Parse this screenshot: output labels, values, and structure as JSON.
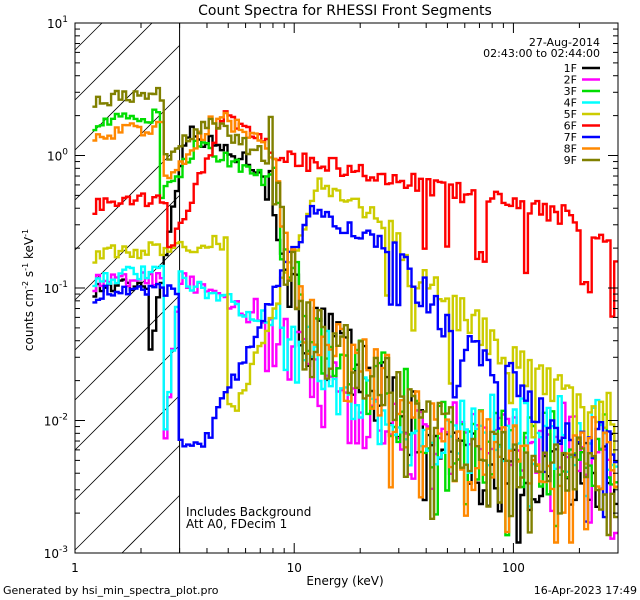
{
  "chart_data": {
    "type": "line",
    "title": "Count Spectra for RHESSI Front Segments",
    "xlabel": "Energy (keV)",
    "ylabel": {
      "main": "counts cm",
      "sup1": "-2",
      "mid": " s",
      "sup2": "-1",
      "tail": " keV",
      "sup3": "-1"
    },
    "xscale": "log",
    "yscale": "log",
    "xlim": [
      1.0,
      300.0
    ],
    "ylim": [
      0.001,
      10.0
    ],
    "x_ticks": [
      {
        "value": 1,
        "label": "1"
      },
      {
        "value": 10,
        "label": "10"
      },
      {
        "value": 100,
        "label": "100"
      }
    ],
    "y_ticks": [
      {
        "value": 10,
        "base": "10",
        "exp": "1"
      },
      {
        "value": 1,
        "base": "10",
        "exp": "0"
      },
      {
        "value": 0.1,
        "base": "10",
        "exp": "-1"
      },
      {
        "value": 0.01,
        "base": "10",
        "exp": "-2"
      },
      {
        "value": 0.001,
        "base": "10",
        "exp": "-3"
      }
    ],
    "hatched_region_kev": [
      1.0,
      3.0
    ],
    "date": "27-Aug-2014",
    "time_range": "02:43:00 to 02:44:00",
    "annotations": [
      "Includes Background",
      "Att A0, FDecim 1"
    ],
    "legend_position": "top-right",
    "series": [
      {
        "name": "1F",
        "color": "#000000",
        "peak": [
          4.6,
          1.55
        ],
        "lo": [
          1.3,
          0.1
        ],
        "ramp": [
          2.2,
          3.2
        ],
        "drop": [
          7.3,
          0.05,
          11
        ],
        "noise": [
          0.004,
          0.6
        ]
      },
      {
        "name": "2F",
        "color": "#ff00ff",
        "peak": [
          3.2,
          0.12
        ],
        "lo": [
          1.3,
          0.11
        ],
        "ramp": [
          2.5,
          3.0
        ],
        "drop": [
          6.5,
          0.02,
          12
        ],
        "noise": [
          0.007,
          0.6
        ]
      },
      {
        "name": "3F",
        "color": "#00dd00",
        "peak": [
          5.4,
          1.25
        ],
        "lo": [
          1.3,
          1.8
        ],
        "ramp": [
          2.4,
          3.6
        ],
        "drop": [
          7.8,
          0.05,
          11
        ],
        "noise": [
          0.006,
          0.6
        ]
      },
      {
        "name": "4F",
        "color": "#00ffff",
        "peak": [
          3.6,
          0.12
        ],
        "lo": [
          1.3,
          0.12
        ],
        "ramp": [
          2.5,
          3.0
        ],
        "drop": [
          7.0,
          0.03,
          12
        ],
        "noise": [
          0.008,
          0.6
        ]
      },
      {
        "name": "5F",
        "color": "#cccc00",
        "peak": [
          14.0,
          0.62
        ],
        "lo": [
          1.3,
          0.18
        ],
        "ramp": [
          5.0,
          13.0
        ],
        "drop": [
          26.0,
          0.12,
          34
        ],
        "noise": [
          0.012,
          0.3
        ]
      },
      {
        "name": "6F",
        "color": "#ff0000",
        "peak": [
          5.4,
          2.0
        ],
        "lo": [
          1.3,
          0.42
        ],
        "ramp": [
          2.6,
          4.8
        ],
        "drop": [
          8.5,
          0.35,
          180
        ],
        "noise": [
          0.006,
          0.15
        ]
      },
      {
        "name": "7F",
        "color": "#0000ff",
        "peak": [
          13.0,
          0.38
        ],
        "lo": [
          1.3,
          0.09
        ],
        "ramp": [
          3.0,
          12.0
        ],
        "drop": [
          30.0,
          0.04,
          55
        ],
        "noise": [
          0.007,
          0.35
        ]
      },
      {
        "name": "8F",
        "color": "#ff8800",
        "peak": [
          5.2,
          2.1
        ],
        "lo": [
          1.3,
          1.5
        ],
        "ramp": [
          2.5,
          4.5
        ],
        "drop": [
          8.0,
          0.05,
          11
        ],
        "noise": [
          0.006,
          0.6
        ]
      },
      {
        "name": "9F",
        "color": "#808000",
        "peak": [
          5.0,
          1.8
        ],
        "lo": [
          1.3,
          2.7
        ],
        "ramp": [
          2.5,
          4.2
        ],
        "drop": [
          7.8,
          0.05,
          11
        ],
        "noise": [
          0.004,
          0.7
        ]
      }
    ]
  },
  "footer": {
    "generated_by": "Generated by hsi_min_spectra_plot.pro",
    "timestamp": "16-Apr-2023 17:49"
  }
}
